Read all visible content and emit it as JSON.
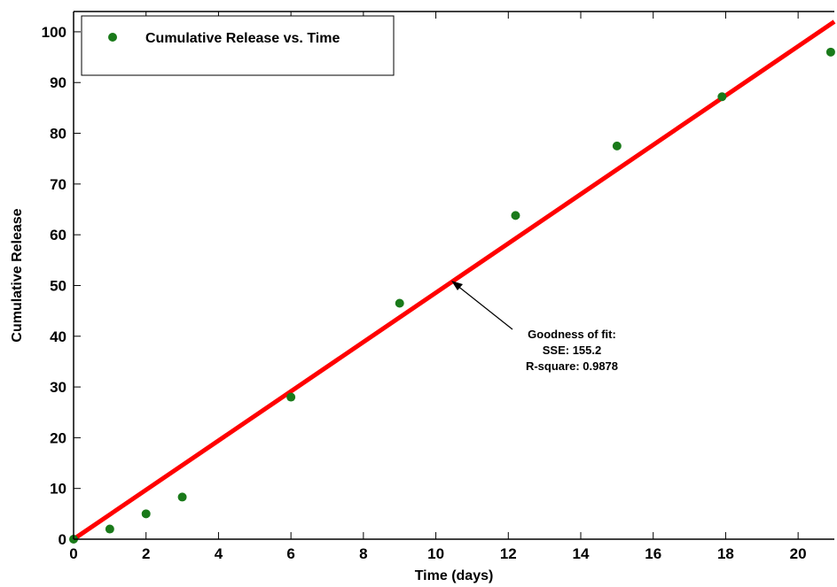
{
  "chart_data": {
    "type": "scatter",
    "title": "",
    "xlabel": "Time (days)",
    "ylabel": "Cumulative Release",
    "xlim": [
      0,
      21
    ],
    "ylim": [
      0,
      104
    ],
    "xticks": [
      0,
      2,
      4,
      6,
      8,
      10,
      12,
      14,
      16,
      18,
      20
    ],
    "yticks": [
      0,
      10,
      20,
      30,
      40,
      50,
      60,
      70,
      80,
      90,
      100
    ],
    "grid": false,
    "legend_position": "top-left",
    "series": [
      {
        "name": "Cumulative Release vs. Time",
        "kind": "scatter",
        "color": "#1a7a1a",
        "x": [
          0,
          1,
          2,
          3,
          6,
          9,
          12.2,
          15,
          17.9,
          20.9
        ],
        "y": [
          0,
          2,
          5,
          8.3,
          28,
          46.5,
          63.8,
          77.5,
          87.2,
          96
        ]
      },
      {
        "kind": "fit-line",
        "color": "#ff0000",
        "x": [
          0,
          21
        ],
        "y": [
          0,
          102
        ]
      }
    ],
    "annotation": {
      "lines": [
        "Goodness of fit:",
        "SSE: 155.2",
        "R-square: 0.9878"
      ],
      "points_to": {
        "x": 10.3,
        "y": 50
      }
    }
  }
}
